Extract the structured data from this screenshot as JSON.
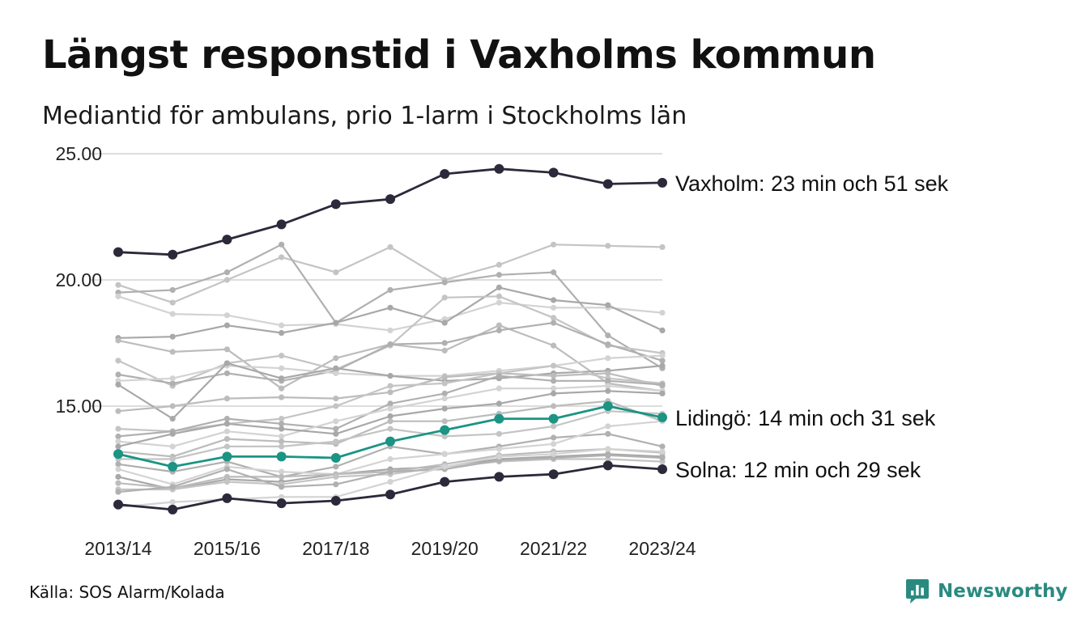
{
  "title": "Längst responstid i Vaxholms kommun",
  "subtitle": "Mediantid för ambulans, prio 1-larm i Stockholms län",
  "source": "Källa: SOS Alarm/Kolada",
  "brand": "Newsworthy",
  "colors": {
    "highlight_dark": "#2b2a3a",
    "highlight_teal": "#1b9484",
    "background_lines": "#bdbdbd",
    "grid": "#dddddd"
  },
  "chart_data": {
    "type": "line",
    "ylim": [
      10,
      25
    ],
    "y_ticks": [
      "25.00",
      "20.00",
      "15.00"
    ],
    "y_tick_values": [
      25,
      20,
      15
    ],
    "x": [
      "2013/14",
      "2014/15",
      "2015/16",
      "2016/17",
      "2017/18",
      "2018/19",
      "2019/20",
      "2020/21",
      "2021/22",
      "2022/23",
      "2023/24"
    ],
    "x_tick_labels": [
      "2013/14",
      "2015/16",
      "2017/18",
      "2019/20",
      "2021/22",
      "2023/24"
    ],
    "grid": "horizontal",
    "highlighted_series": [
      {
        "name": "Vaxholm",
        "label": "Vaxholm: 23 min och 51 sek",
        "color": "#2b2a3a",
        "values": [
          21.1,
          21.0,
          21.6,
          22.2,
          23.0,
          23.2,
          24.2,
          24.4,
          24.25,
          23.8,
          23.85
        ]
      },
      {
        "name": "Lidingö",
        "label": "Lidingö: 14 min och 31 sek",
        "color": "#1b9484",
        "values": [
          13.1,
          12.6,
          13.0,
          13.0,
          12.95,
          13.6,
          14.05,
          14.5,
          14.5,
          15.0,
          14.55
        ]
      },
      {
        "name": "Solna",
        "label": "Solna: 12 min och 29 sek",
        "color": "#2b2a3a",
        "values": [
          11.1,
          10.9,
          11.35,
          11.15,
          11.25,
          11.5,
          12.0,
          12.2,
          12.3,
          12.65,
          12.5
        ]
      }
    ],
    "background_series": [
      {
        "values": [
          19.8,
          19.1,
          20.0,
          20.9,
          20.3,
          21.3,
          20.0,
          20.6,
          21.4,
          21.35,
          21.3
        ]
      },
      {
        "values": [
          19.5,
          19.6,
          20.3,
          21.4,
          18.3,
          19.6,
          19.9,
          20.2,
          20.3,
          17.8,
          16.5
        ]
      },
      {
        "values": [
          19.35,
          18.65,
          18.6,
          18.2,
          18.25,
          18.0,
          18.45,
          19.1,
          18.9,
          18.9,
          18.7
        ]
      },
      {
        "values": [
          17.7,
          17.75,
          18.2,
          17.9,
          18.3,
          18.9,
          18.3,
          19.7,
          19.2,
          19.0,
          18.0
        ]
      },
      {
        "values": [
          17.6,
          17.15,
          17.25,
          15.7,
          16.9,
          17.45,
          17.2,
          18.2,
          17.4,
          15.9,
          15.6
        ]
      },
      {
        "values": [
          16.8,
          15.8,
          16.7,
          17.0,
          16.45,
          17.4,
          19.3,
          19.35,
          18.5,
          17.4,
          17.1
        ]
      },
      {
        "values": [
          16.25,
          15.9,
          16.3,
          16.0,
          16.4,
          17.45,
          17.5,
          18.0,
          18.3,
          17.45,
          16.8
        ]
      },
      {
        "values": [
          16.0,
          16.1,
          16.6,
          16.5,
          16.3,
          16.2,
          16.2,
          16.4,
          16.6,
          16.9,
          17.0
        ]
      },
      {
        "values": [
          15.85,
          14.5,
          16.7,
          16.1,
          16.5,
          16.2,
          16.0,
          16.1,
          16.3,
          16.4,
          16.6
        ]
      },
      {
        "values": [
          14.8,
          15.0,
          15.3,
          15.35,
          15.3,
          15.55,
          16.15,
          16.3,
          16.2,
          16.3,
          15.8
        ]
      },
      {
        "values": [
          14.1,
          14.0,
          14.3,
          14.5,
          15.0,
          15.8,
          15.9,
          16.3,
          16.6,
          16.1,
          15.9
        ]
      },
      {
        "values": [
          13.8,
          14.0,
          14.5,
          14.3,
          14.1,
          15.1,
          15.5,
          16.2,
          16.0,
          16.0,
          15.85
        ]
      },
      {
        "values": [
          13.6,
          13.4,
          14.0,
          13.8,
          14.4,
          14.9,
          15.3,
          15.7,
          15.7,
          15.8,
          15.6
        ]
      },
      {
        "values": [
          13.4,
          13.9,
          14.3,
          14.1,
          13.9,
          14.6,
          14.9,
          15.1,
          15.5,
          15.6,
          15.5
        ]
      },
      {
        "values": [
          13.2,
          13.0,
          13.7,
          13.6,
          13.5,
          14.4,
          14.4,
          14.7,
          15.0,
          15.2,
          14.4
        ]
      },
      {
        "values": [
          12.9,
          12.9,
          13.4,
          13.4,
          13.6,
          14.1,
          13.8,
          13.9,
          14.2,
          14.8,
          14.7
        ]
      },
      {
        "values": [
          12.7,
          12.4,
          12.8,
          12.2,
          12.6,
          13.4,
          13.1,
          13.4,
          13.75,
          13.9,
          13.4
        ]
      },
      {
        "values": [
          12.5,
          11.9,
          12.6,
          12.4,
          12.3,
          12.9,
          13.1,
          13.3,
          13.5,
          14.2,
          14.4
        ]
      },
      {
        "values": [
          12.2,
          11.7,
          12.1,
          12.0,
          12.3,
          12.5,
          12.6,
          12.9,
          13.0,
          13.1,
          13.0
        ]
      },
      {
        "values": [
          11.95,
          11.75,
          12.2,
          12.2,
          12.3,
          12.4,
          12.7,
          13.05,
          13.2,
          13.3,
          13.15
        ]
      },
      {
        "values": [
          11.7,
          11.7,
          12.0,
          11.9,
          12.2,
          12.3,
          12.6,
          12.8,
          12.9,
          12.9,
          12.8
        ]
      },
      {
        "values": [
          11.6,
          11.8,
          12.5,
          11.8,
          11.9,
          12.4,
          12.5,
          12.85,
          12.95,
          13.05,
          12.95
        ]
      },
      {
        "values": [
          11.0,
          11.2,
          11.3,
          11.4,
          11.4,
          12.0,
          12.6,
          13.0,
          13.1,
          13.3,
          13.2
        ]
      }
    ]
  }
}
